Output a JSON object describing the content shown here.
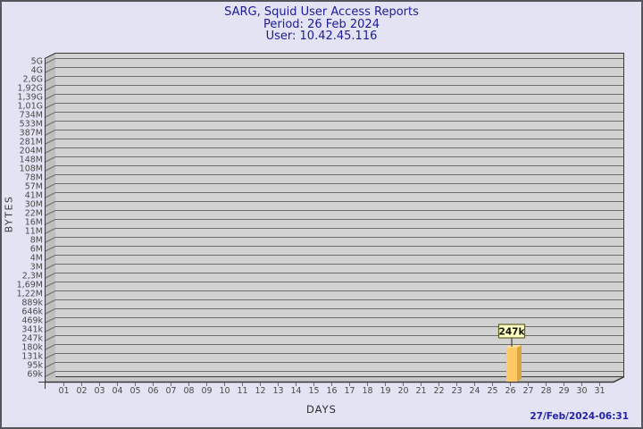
{
  "header": {
    "title": "SARG, Squid User Access Reports",
    "period": "Period: 26 Feb 2024",
    "user": "User: 10.42.45.116"
  },
  "footer": {
    "timestamp": "27/Feb/2024-06:31"
  },
  "colors": {
    "page_bg": "#E3E3F3",
    "page_border": "#55555C",
    "title_text": "#1B1B9B",
    "plot_bg": "#D2D2D2",
    "wall_bg": "#C0C0C0",
    "floor_bg": "#C6C6C6",
    "grid_line": "#6E6E6E",
    "frame_line": "#383838",
    "tick_text": "#4A4A4A",
    "bar_front": "#FFC966",
    "bar_side": "#DFA640",
    "bar_top": "#FFDE9C",
    "annotation_bg": "#FFFFC6",
    "annotation_border": "#60601E",
    "annotation_text": "#111100",
    "timestamp_text": "#2222AA"
  },
  "chart_data": {
    "type": "bar",
    "title": "SARG, Squid User Access Reports",
    "subtitle": "Period: 26 Feb 2024",
    "user_line": "User: 10.42.45.116",
    "xlabel": "DAYS",
    "ylabel": "BYTES",
    "y_scale": "log-like (gdchart/SARG byte scale)",
    "ylim": [
      "69k",
      "5G"
    ],
    "grid": true,
    "legend": "none",
    "y_tick_labels": [
      "5G",
      "4G",
      "2,6G",
      "1,92G",
      "1,39G",
      "1,01G",
      "734M",
      "533M",
      "387M",
      "281M",
      "204M",
      "148M",
      "108M",
      "78M",
      "57M",
      "41M",
      "30M",
      "22M",
      "16M",
      "11M",
      "8M",
      "6M",
      "4M",
      "3M",
      "2,3M",
      "1,69M",
      "1,22M",
      "889k",
      "646k",
      "469k",
      "341k",
      "247k",
      "180k",
      "131k",
      "95k",
      "69k"
    ],
    "categories": [
      "01",
      "02",
      "03",
      "04",
      "05",
      "06",
      "07",
      "08",
      "09",
      "10",
      "11",
      "12",
      "13",
      "14",
      "15",
      "16",
      "17",
      "18",
      "19",
      "20",
      "21",
      "22",
      "23",
      "24",
      "25",
      "26",
      "27",
      "28",
      "29",
      "30",
      "31"
    ],
    "series": [
      {
        "name": "bytes",
        "values": [
          0,
          0,
          0,
          0,
          0,
          0,
          0,
          0,
          0,
          0,
          0,
          0,
          0,
          0,
          0,
          0,
          0,
          0,
          0,
          0,
          0,
          0,
          0,
          0,
          0,
          247000,
          0,
          0,
          0,
          0,
          0
        ]
      }
    ],
    "bars": [
      {
        "day": "26",
        "value": 247000,
        "label": "247k",
        "aligns_with_y_tick": "247k"
      }
    ]
  }
}
